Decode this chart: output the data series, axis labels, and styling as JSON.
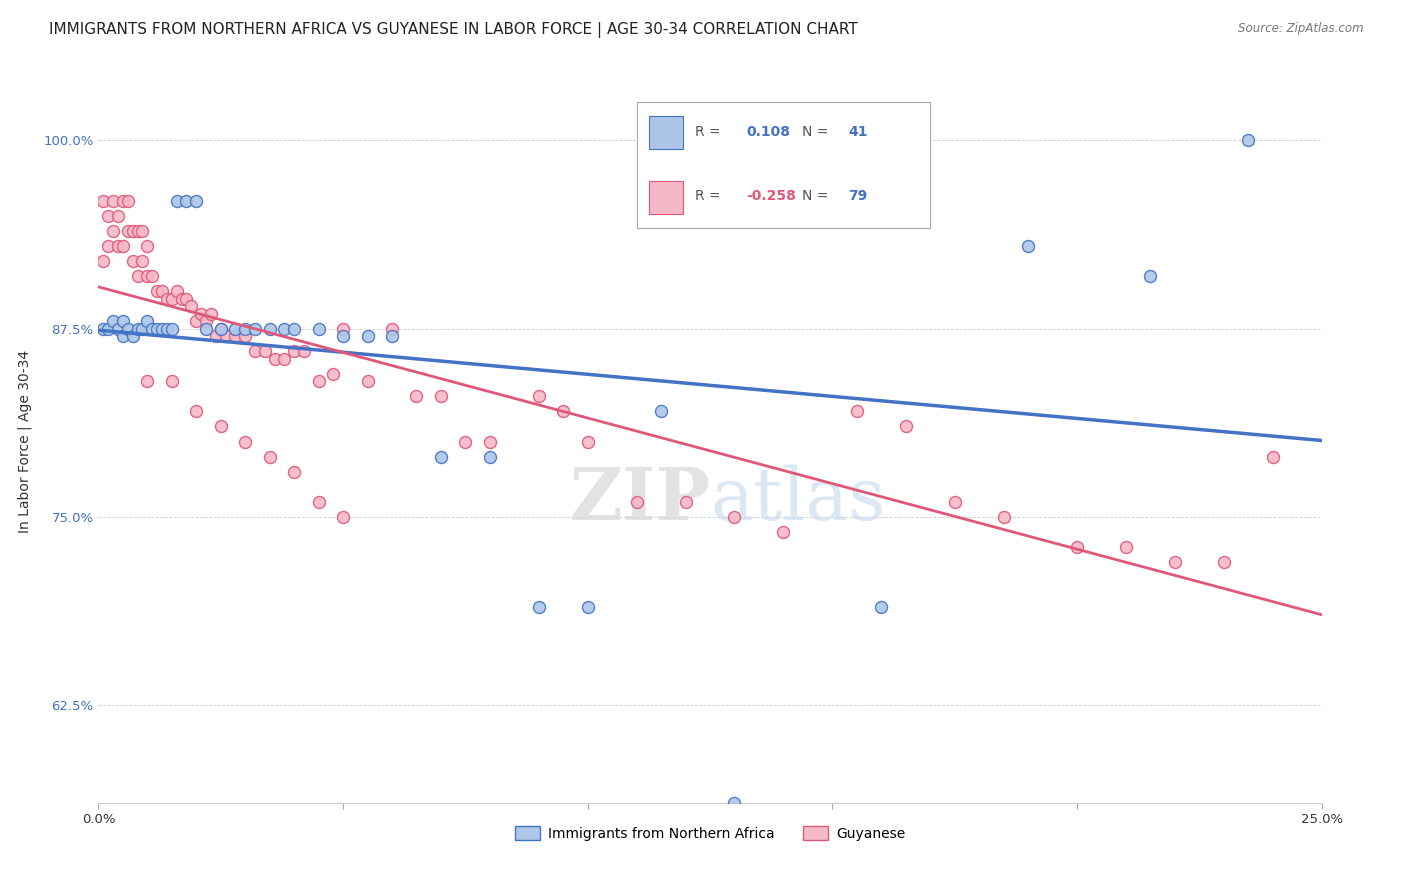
{
  "title": "IMMIGRANTS FROM NORTHERN AFRICA VS GUYANESE IN LABOR FORCE | AGE 30-34 CORRELATION CHART",
  "source": "Source: ZipAtlas.com",
  "ylabel": "In Labor Force | Age 30-34",
  "xlim": [
    0.0,
    0.25
  ],
  "ylim": [
    0.56,
    1.04
  ],
  "yticks": [
    0.625,
    0.75,
    0.875,
    1.0
  ],
  "ytick_labels": [
    "62.5%",
    "75.0%",
    "87.5%",
    "100.0%"
  ],
  "xticks": [
    0.0,
    0.05,
    0.1,
    0.15,
    0.2,
    0.25
  ],
  "xtick_labels": [
    "0.0%",
    "",
    "",
    "",
    "",
    "25.0%"
  ],
  "blue_color": "#adc6e8",
  "blue_line_color": "#4472c4",
  "pink_color": "#f4b8c8",
  "pink_line_color": "#e05878",
  "blue_points_x": [
    0.001,
    0.002,
    0.003,
    0.004,
    0.005,
    0.005,
    0.006,
    0.007,
    0.008,
    0.009,
    0.01,
    0.011,
    0.012,
    0.013,
    0.014,
    0.015,
    0.016,
    0.018,
    0.02,
    0.022,
    0.025,
    0.028,
    0.03,
    0.032,
    0.035,
    0.038,
    0.04,
    0.045,
    0.05,
    0.055,
    0.06,
    0.07,
    0.08,
    0.09,
    0.1,
    0.115,
    0.13,
    0.16,
    0.19,
    0.215,
    0.235
  ],
  "blue_points_y": [
    0.875,
    0.875,
    0.88,
    0.875,
    0.88,
    0.87,
    0.875,
    0.87,
    0.875,
    0.875,
    0.88,
    0.875,
    0.875,
    0.875,
    0.875,
    0.875,
    0.96,
    0.96,
    0.96,
    0.875,
    0.875,
    0.875,
    0.875,
    0.875,
    0.875,
    0.875,
    0.875,
    0.875,
    0.87,
    0.87,
    0.87,
    0.79,
    0.79,
    0.69,
    0.69,
    0.82,
    0.56,
    0.69,
    0.93,
    0.91,
    1.0
  ],
  "pink_points_x": [
    0.001,
    0.001,
    0.002,
    0.002,
    0.003,
    0.003,
    0.004,
    0.004,
    0.005,
    0.005,
    0.006,
    0.006,
    0.007,
    0.007,
    0.008,
    0.008,
    0.009,
    0.009,
    0.01,
    0.01,
    0.011,
    0.012,
    0.013,
    0.014,
    0.015,
    0.016,
    0.017,
    0.018,
    0.019,
    0.02,
    0.021,
    0.022,
    0.023,
    0.024,
    0.025,
    0.026,
    0.028,
    0.03,
    0.032,
    0.034,
    0.036,
    0.038,
    0.04,
    0.042,
    0.045,
    0.048,
    0.05,
    0.055,
    0.06,
    0.065,
    0.07,
    0.075,
    0.08,
    0.09,
    0.095,
    0.1,
    0.11,
    0.12,
    0.13,
    0.14,
    0.155,
    0.165,
    0.175,
    0.185,
    0.2,
    0.21,
    0.22,
    0.23,
    0.24,
    0.01,
    0.015,
    0.02,
    0.025,
    0.03,
    0.035,
    0.04,
    0.045,
    0.05
  ],
  "pink_points_y": [
    0.92,
    0.96,
    0.93,
    0.95,
    0.94,
    0.96,
    0.93,
    0.95,
    0.93,
    0.96,
    0.94,
    0.96,
    0.92,
    0.94,
    0.91,
    0.94,
    0.92,
    0.94,
    0.91,
    0.93,
    0.91,
    0.9,
    0.9,
    0.895,
    0.895,
    0.9,
    0.895,
    0.895,
    0.89,
    0.88,
    0.885,
    0.88,
    0.885,
    0.87,
    0.875,
    0.87,
    0.87,
    0.87,
    0.86,
    0.86,
    0.855,
    0.855,
    0.86,
    0.86,
    0.84,
    0.845,
    0.875,
    0.84,
    0.875,
    0.83,
    0.83,
    0.8,
    0.8,
    0.83,
    0.82,
    0.8,
    0.76,
    0.76,
    0.75,
    0.74,
    0.82,
    0.81,
    0.76,
    0.75,
    0.73,
    0.73,
    0.72,
    0.72,
    0.79,
    0.84,
    0.84,
    0.82,
    0.81,
    0.8,
    0.79,
    0.78,
    0.76,
    0.75
  ],
  "watermark_zip": "ZIP",
  "watermark_atlas": "atlas",
  "legend_R1_val": "0.108",
  "legend_N1_val": "41",
  "legend_R2_val": "-0.258",
  "legend_N2_val": "79",
  "title_fontsize": 11,
  "axis_label_fontsize": 10,
  "tick_fontsize": 9.5
}
